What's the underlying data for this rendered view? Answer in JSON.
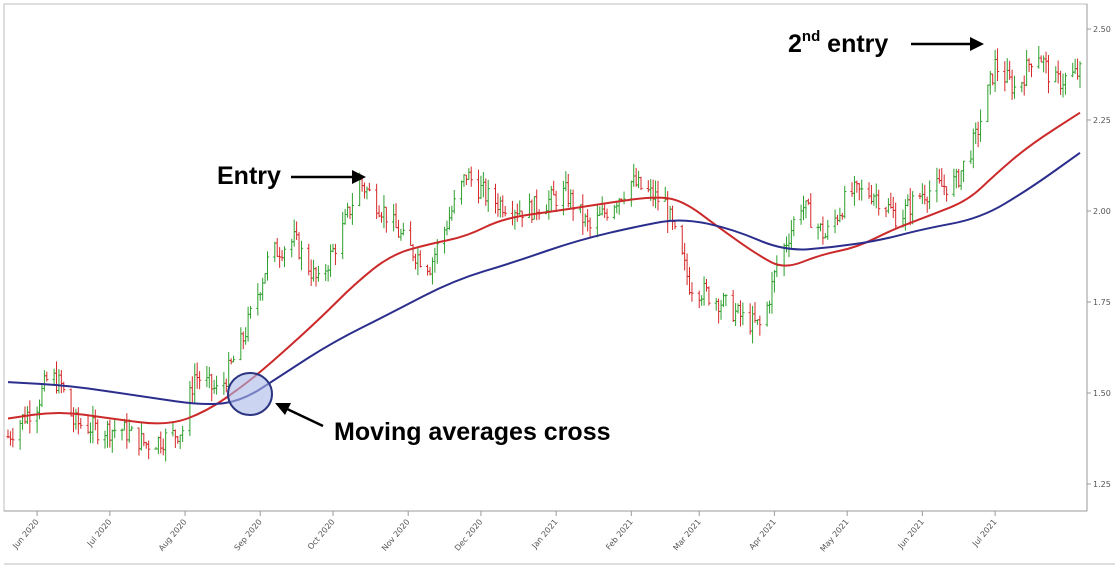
{
  "chart_data": {
    "type": "ohlc",
    "title": "",
    "xlabel": "",
    "ylabel": "",
    "ylim": [
      1.19,
      2.55
    ],
    "yticks": [
      "2.50",
      "2.25",
      "2.00",
      "1.75",
      "1.50",
      "1.25"
    ],
    "ytick_values": [
      2.5,
      2.25,
      2.0,
      1.75,
      1.5,
      1.25
    ],
    "xticks": [
      "Jun 2020",
      "Jul 2020",
      "Aug 2020",
      "Sep 2020",
      "Oct 2020",
      "Nov 2020",
      "Dec 2020",
      "Jan 2021",
      "Feb 2021",
      "Mar 2021",
      "Apr 2021",
      "May 2021",
      "Jun 2021",
      "Jul 2021"
    ],
    "xtick_dates": [
      "2020-06-01",
      "2020-07-01",
      "2020-08-01",
      "2020-09-01",
      "2020-10-01",
      "2020-11-01",
      "2020-12-01",
      "2021-01-01",
      "2021-02-01",
      "2021-03-01",
      "2021-04-01",
      "2021-05-01",
      "2021-06-01",
      "2021-07-01"
    ],
    "x_range": [
      "2020-05-20",
      "2021-08-05"
    ],
    "grid": false,
    "up_color": "#2ca02c",
    "down_color": "#d62728",
    "price_anchors": [
      [
        "2020-05-20",
        1.38
      ],
      [
        "2020-05-26",
        1.43
      ],
      [
        "2020-06-01",
        1.47
      ],
      [
        "2020-06-06",
        1.55
      ],
      [
        "2020-06-11",
        1.52
      ],
      [
        "2020-06-16",
        1.42
      ],
      [
        "2020-06-26",
        1.4
      ],
      [
        "2020-07-06",
        1.4
      ],
      [
        "2020-07-16",
        1.36
      ],
      [
        "2020-07-26",
        1.38
      ],
      [
        "2020-07-31",
        1.4
      ],
      [
        "2020-08-05",
        1.55
      ],
      [
        "2020-08-15",
        1.5
      ],
      [
        "2020-08-25",
        1.65
      ],
      [
        "2020-09-05",
        1.88
      ],
      [
        "2020-09-15",
        1.92
      ],
      [
        "2020-09-25",
        1.8
      ],
      [
        "2020-10-05",
        1.95
      ],
      [
        "2020-10-12",
        2.08
      ],
      [
        "2020-10-22",
        2.0
      ],
      [
        "2020-11-01",
        1.9
      ],
      [
        "2020-11-10",
        1.85
      ],
      [
        "2020-11-25",
        2.1
      ],
      [
        "2020-12-05",
        2.03
      ],
      [
        "2020-12-20",
        2.0
      ],
      [
        "2021-01-05",
        2.05
      ],
      [
        "2021-01-15",
        1.95
      ],
      [
        "2021-02-01",
        2.08
      ],
      [
        "2021-02-15",
        2.02
      ],
      [
        "2021-02-25",
        1.8
      ],
      [
        "2021-03-10",
        1.75
      ],
      [
        "2021-03-20",
        1.7
      ],
      [
        "2021-03-27",
        1.68
      ],
      [
        "2021-04-02",
        1.85
      ],
      [
        "2021-04-12",
        2.02
      ],
      [
        "2021-04-22",
        1.93
      ],
      [
        "2021-05-02",
        2.05
      ],
      [
        "2021-05-12",
        2.05
      ],
      [
        "2021-05-22",
        1.98
      ],
      [
        "2021-06-01",
        2.05
      ],
      [
        "2021-06-15",
        2.08
      ],
      [
        "2021-06-23",
        2.2
      ],
      [
        "2021-07-01",
        2.4
      ],
      [
        "2021-07-10",
        2.33
      ],
      [
        "2021-07-18",
        2.45
      ],
      [
        "2021-07-25",
        2.35
      ],
      [
        "2021-08-05",
        2.38
      ]
    ],
    "series": [
      {
        "color": "#cc2a2a",
        "values": [
          [
            "2020-05-20",
            1.43
          ],
          [
            "2020-06-10",
            1.45
          ],
          [
            "2020-07-01",
            1.43
          ],
          [
            "2020-07-25",
            1.41
          ],
          [
            "2020-08-10",
            1.45
          ],
          [
            "2020-08-25",
            1.52
          ],
          [
            "2020-09-05",
            1.58
          ],
          [
            "2020-09-25",
            1.7
          ],
          [
            "2020-10-10",
            1.8
          ],
          [
            "2020-10-25",
            1.88
          ],
          [
            "2020-11-10",
            1.91
          ],
          [
            "2020-11-25",
            1.93
          ],
          [
            "2020-12-10",
            1.98
          ],
          [
            "2021-01-01",
            2.0
          ],
          [
            "2021-01-20",
            2.02
          ],
          [
            "2021-02-10",
            2.04
          ],
          [
            "2021-02-22",
            2.03
          ],
          [
            "2021-03-10",
            1.95
          ],
          [
            "2021-03-25",
            1.88
          ],
          [
            "2021-04-05",
            1.84
          ],
          [
            "2021-04-20",
            1.88
          ],
          [
            "2021-05-05",
            1.9
          ],
          [
            "2021-05-20",
            1.95
          ],
          [
            "2021-06-05",
            1.99
          ],
          [
            "2021-06-20",
            2.03
          ],
          [
            "2021-07-01",
            2.1
          ],
          [
            "2021-07-15",
            2.18
          ],
          [
            "2021-08-05",
            2.27
          ]
        ]
      },
      {
        "color": "#2b2e8c",
        "values": [
          [
            "2020-05-20",
            1.53
          ],
          [
            "2020-06-15",
            1.52
          ],
          [
            "2020-07-15",
            1.49
          ],
          [
            "2020-08-10",
            1.465
          ],
          [
            "2020-08-25",
            1.48
          ],
          [
            "2020-09-10",
            1.55
          ],
          [
            "2020-10-01",
            1.64
          ],
          [
            "2020-10-25",
            1.72
          ],
          [
            "2020-11-20",
            1.81
          ],
          [
            "2020-12-15",
            1.86
          ],
          [
            "2021-01-10",
            1.92
          ],
          [
            "2021-02-05",
            1.96
          ],
          [
            "2021-02-22",
            1.98
          ],
          [
            "2021-03-15",
            1.95
          ],
          [
            "2021-04-05",
            1.89
          ],
          [
            "2021-04-25",
            1.9
          ],
          [
            "2021-05-15",
            1.92
          ],
          [
            "2021-06-01",
            1.95
          ],
          [
            "2021-06-25",
            1.98
          ],
          [
            "2021-07-15",
            2.06
          ],
          [
            "2021-08-05",
            2.16
          ]
        ]
      }
    ],
    "annotations": [
      {
        "text_main": "Entry",
        "text_sup": "",
        "text_rest": ""
      },
      {
        "text_main": "2",
        "text_sup": "nd",
        "text_rest": " entry"
      },
      {
        "text_main": "Moving averages cross",
        "text_sup": "",
        "text_rest": ""
      }
    ]
  }
}
